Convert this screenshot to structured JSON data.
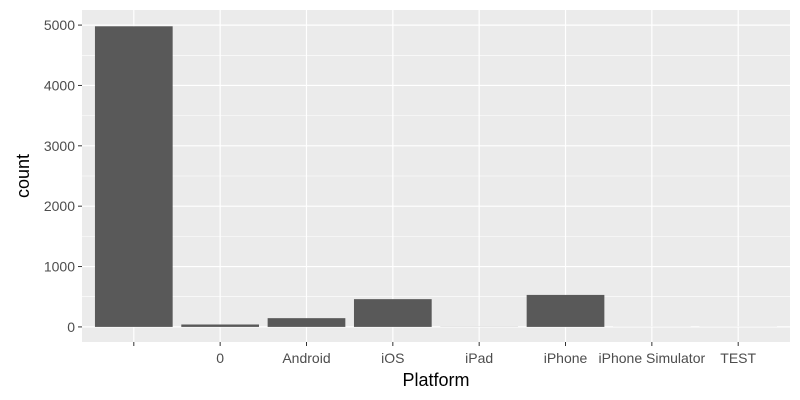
{
  "chart_data": {
    "type": "bar",
    "xlabel": "Platform",
    "ylabel": "count",
    "categories": [
      "",
      "0",
      "Android",
      "iOS",
      "iPad",
      "iPhone",
      "iPhone Simulator",
      "TEST"
    ],
    "values": [
      4980,
      40,
      145,
      460,
      2,
      530,
      1,
      1
    ],
    "ylim": [
      -250,
      5250
    ],
    "yticks": [
      0,
      1000,
      2000,
      3000,
      4000,
      5000
    ],
    "grid": true,
    "legend": "none"
  },
  "colors": {
    "panel": "#ebebeb",
    "grid_major": "#ffffff",
    "bar": "#595959",
    "tick_text": "#4d4d4d",
    "tick_mark": "#333333"
  }
}
